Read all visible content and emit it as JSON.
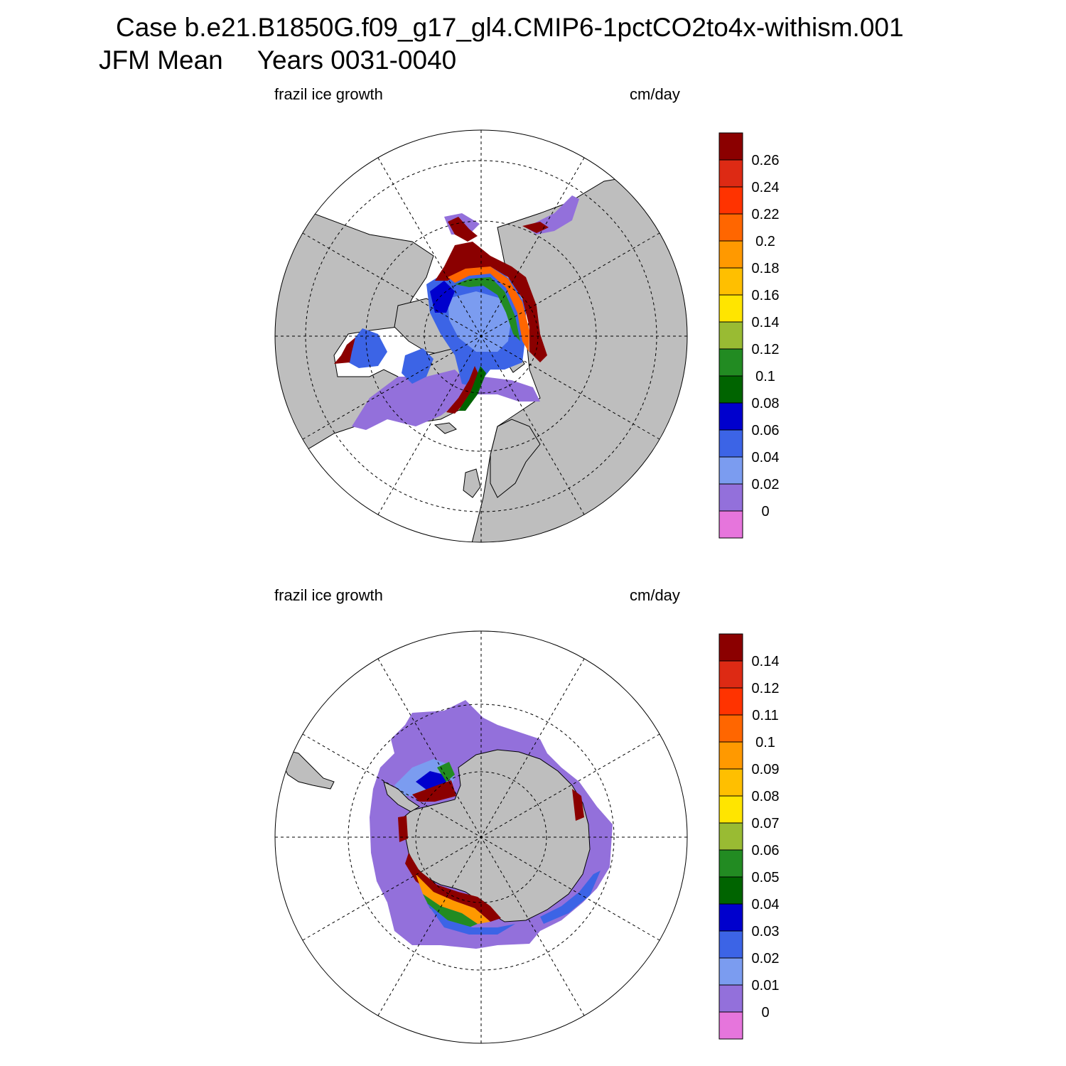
{
  "title": {
    "case": "Case b.e21.B1850G.f09_g17_gl4.CMIP6-1pctCO2to4x-withism.001",
    "season": "JFM Mean",
    "years": "Years 0031-0040"
  },
  "panels": [
    {
      "hemisphere": "north",
      "left_label": "frazil ice growth",
      "right_label": "cm/day",
      "colorbar_ticks": [
        "0.26",
        "0.24",
        "0.22",
        "0.2",
        "0.18",
        "0.16",
        "0.14",
        "0.12",
        "0.1",
        "0.08",
        "0.06",
        "0.04",
        "0.02",
        "0"
      ]
    },
    {
      "hemisphere": "south",
      "left_label": "frazil ice growth",
      "right_label": "cm/day",
      "colorbar_ticks": [
        "0.14",
        "0.12",
        "0.11",
        "0.1",
        "0.09",
        "0.08",
        "0.07",
        "0.06",
        "0.05",
        "0.04",
        "0.03",
        "0.02",
        "0.01",
        "0"
      ]
    }
  ],
  "colors": {
    "land": "#bebebe",
    "scale": [
      "#8b0000",
      "#dd2a14",
      "#ff3300",
      "#ff6600",
      "#ff9900",
      "#ffbf00",
      "#ffe500",
      "#99bb33",
      "#228b22",
      "#006400",
      "#0000cd",
      "#3c64e6",
      "#7b9cf0",
      "#9370db",
      "#e675dc"
    ]
  }
}
